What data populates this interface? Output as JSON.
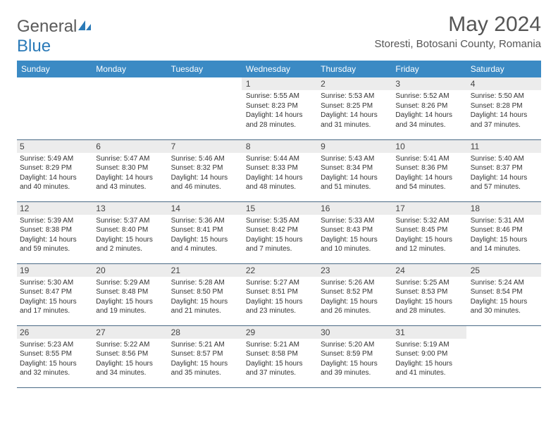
{
  "logo": {
    "word1": "General",
    "word2": "Blue"
  },
  "title": "May 2024",
  "location": "Storesti, Botosani County, Romania",
  "headerColor": "#3b8ac4",
  "stripeColor": "#ececec",
  "dayNames": [
    "Sunday",
    "Monday",
    "Tuesday",
    "Wednesday",
    "Thursday",
    "Friday",
    "Saturday"
  ],
  "weeks": [
    [
      {
        "n": "",
        "sr": "",
        "ss": "",
        "dl": ""
      },
      {
        "n": "",
        "sr": "",
        "ss": "",
        "dl": ""
      },
      {
        "n": "",
        "sr": "",
        "ss": "",
        "dl": ""
      },
      {
        "n": "1",
        "sr": "Sunrise: 5:55 AM",
        "ss": "Sunset: 8:23 PM",
        "dl": "Daylight: 14 hours and 28 minutes."
      },
      {
        "n": "2",
        "sr": "Sunrise: 5:53 AM",
        "ss": "Sunset: 8:25 PM",
        "dl": "Daylight: 14 hours and 31 minutes."
      },
      {
        "n": "3",
        "sr": "Sunrise: 5:52 AM",
        "ss": "Sunset: 8:26 PM",
        "dl": "Daylight: 14 hours and 34 minutes."
      },
      {
        "n": "4",
        "sr": "Sunrise: 5:50 AM",
        "ss": "Sunset: 8:28 PM",
        "dl": "Daylight: 14 hours and 37 minutes."
      }
    ],
    [
      {
        "n": "5",
        "sr": "Sunrise: 5:49 AM",
        "ss": "Sunset: 8:29 PM",
        "dl": "Daylight: 14 hours and 40 minutes."
      },
      {
        "n": "6",
        "sr": "Sunrise: 5:47 AM",
        "ss": "Sunset: 8:30 PM",
        "dl": "Daylight: 14 hours and 43 minutes."
      },
      {
        "n": "7",
        "sr": "Sunrise: 5:46 AM",
        "ss": "Sunset: 8:32 PM",
        "dl": "Daylight: 14 hours and 46 minutes."
      },
      {
        "n": "8",
        "sr": "Sunrise: 5:44 AM",
        "ss": "Sunset: 8:33 PM",
        "dl": "Daylight: 14 hours and 48 minutes."
      },
      {
        "n": "9",
        "sr": "Sunrise: 5:43 AM",
        "ss": "Sunset: 8:34 PM",
        "dl": "Daylight: 14 hours and 51 minutes."
      },
      {
        "n": "10",
        "sr": "Sunrise: 5:41 AM",
        "ss": "Sunset: 8:36 PM",
        "dl": "Daylight: 14 hours and 54 minutes."
      },
      {
        "n": "11",
        "sr": "Sunrise: 5:40 AM",
        "ss": "Sunset: 8:37 PM",
        "dl": "Daylight: 14 hours and 57 minutes."
      }
    ],
    [
      {
        "n": "12",
        "sr": "Sunrise: 5:39 AM",
        "ss": "Sunset: 8:38 PM",
        "dl": "Daylight: 14 hours and 59 minutes."
      },
      {
        "n": "13",
        "sr": "Sunrise: 5:37 AM",
        "ss": "Sunset: 8:40 PM",
        "dl": "Daylight: 15 hours and 2 minutes."
      },
      {
        "n": "14",
        "sr": "Sunrise: 5:36 AM",
        "ss": "Sunset: 8:41 PM",
        "dl": "Daylight: 15 hours and 4 minutes."
      },
      {
        "n": "15",
        "sr": "Sunrise: 5:35 AM",
        "ss": "Sunset: 8:42 PM",
        "dl": "Daylight: 15 hours and 7 minutes."
      },
      {
        "n": "16",
        "sr": "Sunrise: 5:33 AM",
        "ss": "Sunset: 8:43 PM",
        "dl": "Daylight: 15 hours and 10 minutes."
      },
      {
        "n": "17",
        "sr": "Sunrise: 5:32 AM",
        "ss": "Sunset: 8:45 PM",
        "dl": "Daylight: 15 hours and 12 minutes."
      },
      {
        "n": "18",
        "sr": "Sunrise: 5:31 AM",
        "ss": "Sunset: 8:46 PM",
        "dl": "Daylight: 15 hours and 14 minutes."
      }
    ],
    [
      {
        "n": "19",
        "sr": "Sunrise: 5:30 AM",
        "ss": "Sunset: 8:47 PM",
        "dl": "Daylight: 15 hours and 17 minutes."
      },
      {
        "n": "20",
        "sr": "Sunrise: 5:29 AM",
        "ss": "Sunset: 8:48 PM",
        "dl": "Daylight: 15 hours and 19 minutes."
      },
      {
        "n": "21",
        "sr": "Sunrise: 5:28 AM",
        "ss": "Sunset: 8:50 PM",
        "dl": "Daylight: 15 hours and 21 minutes."
      },
      {
        "n": "22",
        "sr": "Sunrise: 5:27 AM",
        "ss": "Sunset: 8:51 PM",
        "dl": "Daylight: 15 hours and 23 minutes."
      },
      {
        "n": "23",
        "sr": "Sunrise: 5:26 AM",
        "ss": "Sunset: 8:52 PM",
        "dl": "Daylight: 15 hours and 26 minutes."
      },
      {
        "n": "24",
        "sr": "Sunrise: 5:25 AM",
        "ss": "Sunset: 8:53 PM",
        "dl": "Daylight: 15 hours and 28 minutes."
      },
      {
        "n": "25",
        "sr": "Sunrise: 5:24 AM",
        "ss": "Sunset: 8:54 PM",
        "dl": "Daylight: 15 hours and 30 minutes."
      }
    ],
    [
      {
        "n": "26",
        "sr": "Sunrise: 5:23 AM",
        "ss": "Sunset: 8:55 PM",
        "dl": "Daylight: 15 hours and 32 minutes."
      },
      {
        "n": "27",
        "sr": "Sunrise: 5:22 AM",
        "ss": "Sunset: 8:56 PM",
        "dl": "Daylight: 15 hours and 34 minutes."
      },
      {
        "n": "28",
        "sr": "Sunrise: 5:21 AM",
        "ss": "Sunset: 8:57 PM",
        "dl": "Daylight: 15 hours and 35 minutes."
      },
      {
        "n": "29",
        "sr": "Sunrise: 5:21 AM",
        "ss": "Sunset: 8:58 PM",
        "dl": "Daylight: 15 hours and 37 minutes."
      },
      {
        "n": "30",
        "sr": "Sunrise: 5:20 AM",
        "ss": "Sunset: 8:59 PM",
        "dl": "Daylight: 15 hours and 39 minutes."
      },
      {
        "n": "31",
        "sr": "Sunrise: 5:19 AM",
        "ss": "Sunset: 9:00 PM",
        "dl": "Daylight: 15 hours and 41 minutes."
      },
      {
        "n": "",
        "sr": "",
        "ss": "",
        "dl": ""
      }
    ]
  ]
}
